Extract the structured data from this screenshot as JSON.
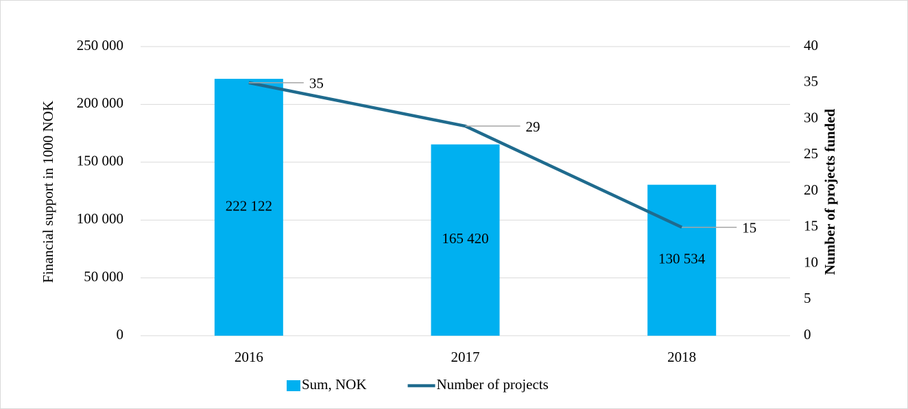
{
  "chart_data": {
    "type": "combo",
    "categories": [
      "2016",
      "2017",
      "2018"
    ],
    "series": [
      {
        "name": "Sum, NOK",
        "type": "bar",
        "color": "#00b0f0",
        "values": [
          222122,
          165420,
          130534
        ],
        "value_labels": [
          "222 122",
          "165 420",
          "130 534"
        ]
      },
      {
        "name": "Number of projects",
        "type": "line",
        "axis": "y2",
        "color": "#1f6b8e",
        "values": [
          35,
          29,
          15
        ]
      }
    ],
    "y_label": "Financial support in 1000 NOK",
    "y2_label": "Number of projects funded",
    "ylim": [
      0,
      250000
    ],
    "yticks": [
      0,
      {
        "value": 50000,
        "label": "50 000"
      },
      {
        "value": 100000,
        "label": "100 000"
      },
      {
        "value": 150000,
        "label": "150 000"
      },
      {
        "value": 200000,
        "label": "200 000"
      },
      {
        "value": 250000,
        "label": "250 000"
      }
    ],
    "y2lim": [
      0,
      40
    ],
    "y2ticks": [
      0,
      5,
      10,
      15,
      20,
      25,
      30,
      35,
      40
    ],
    "grid": true,
    "legend": "bottom"
  }
}
